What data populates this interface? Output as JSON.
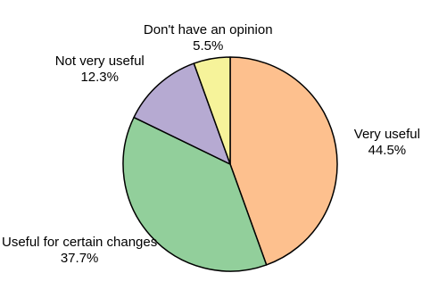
{
  "chart_data": {
    "type": "pie",
    "title": "",
    "slices": [
      {
        "label": "Very useful",
        "value": 44.5,
        "value_label": "44.5%",
        "color": "#fdc08e"
      },
      {
        "label": "Useful for certain changes",
        "value": 37.7,
        "value_label": "37.7%",
        "color": "#92cf9b"
      },
      {
        "label": "Not very useful",
        "value": 12.3,
        "value_label": "12.3%",
        "color": "#b6aad2"
      },
      {
        "label": "Don't have an opinion",
        "value": 5.5,
        "value_label": "5.5%",
        "color": "#f6f39a"
      }
    ],
    "start_angle": "top (12 o'clock)",
    "direction": "clockwise",
    "legend": "none",
    "edge_color": "#000000"
  }
}
